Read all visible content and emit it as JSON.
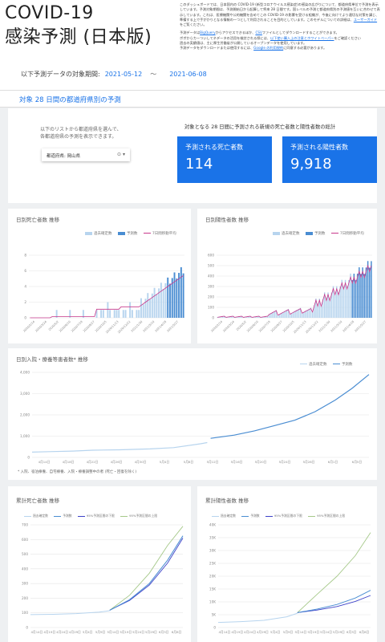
{
  "header": {
    "title": "COVID-19 感染予測 (日本版)",
    "period_label": "以下予測データの対象期間:",
    "start": "2021-05-12",
    "tilde": "〜",
    "end": "2021-06-08",
    "desc_p1": "このダッシュボードでは、日本国内の COVID-19 (新型コロナウイルス感染症)の感染の広がりについて、都道府県単位で予測を表示しています。予測対象期間は、予測開始日から起算して将来 28 日間です。国レベルの予測と都道府県別の予測値を互いに合わせて表示しています。これは、医療機関や公的機関を含めてこの COVID-19 の影響を受ける組織が、今後に向けてより適切な対策を講じ、準備する上で手がかりとなる情報の一つとして利用されることを目的としています。このモデルについての詳細は、",
    "desc_link1": "ユーザーガイド",
    "desc_p1_end": "をご覧ください。",
    "desc_p2": "予測データは",
    "desc_link2": "BigQuery",
    "desc_p2b": "からアクセスできるほか、",
    "desc_link3": "CSV",
    "desc_p2c": "ファイルとしてダウンロードすることができます。",
    "desc_p3": "ボボからカーついしてネデータの活用を検討される際には、",
    "desc_link4": "以下使い購入上の注意とホワイトペーパー",
    "desc_p3b": "をご確認ください",
    "desc_p4": "過去の実績値は、主に厚生労働省が公開しているオープンデータを使用しています。",
    "desc_p5": "予測データをダウンロードまたは使用するには、",
    "desc_link5": "Google の利用規約",
    "desc_p5b": "に同意する必要があります。"
  },
  "section_title": "対象 28 日間の都道府県別の予測",
  "selector": {
    "info_line1": "以下のリストから都道府県を選んで、",
    "info_line2": "各都道府県の予測を表示できます。",
    "dropdown_text": "都道府県: 岡山県"
  },
  "kpi": {
    "heading": "対象となる 28 日間に予測される新規の死亡者数と陽性者数の総計",
    "deaths_label": "予測される死亡者数",
    "deaths_value": "114",
    "positives_label": "予測される陽性者数",
    "positives_value": "9,918"
  },
  "colors": {
    "accent": "#1a73e8",
    "actual": "#b7d4ee",
    "forecast": "#4a8dd2",
    "avg": "#c7388b",
    "lower": "#3d42c9",
    "upper": "#a6c98a"
  },
  "charts": {
    "daily_deaths": {
      "title": "日別死亡者数 推移",
      "legend": [
        "過去確定数",
        "予測数",
        "7日間移動平均"
      ],
      "ylabels": [
        "8",
        "6",
        "4",
        "2",
        "0"
      ],
      "ymax": 8,
      "dates": [
        "2020/2/14",
        "2020/3/24",
        "2020/5/2",
        "2020/6/10",
        "2020/7/19",
        "2020/8/27",
        "2020/10/5",
        "2020/11/13",
        "2020/12/22",
        "2021/1/30",
        "2021/3/10",
        "2021/4/18",
        "2021/5/27"
      ]
    },
    "daily_positive": {
      "title": "日別陽性者数 推移",
      "legend": [
        "過去確定数",
        "予測数",
        "7日間移動平均"
      ],
      "ylabels": [
        "600",
        "500",
        "400",
        "300",
        "200",
        "100",
        "0"
      ],
      "ymax": 600,
      "dates": [
        "2020/2/14",
        "2020/3/24",
        "2020/5/2",
        "2020/6/10",
        "2020/7/19",
        "2020/8/27",
        "2020/10/5",
        "2020/11/13",
        "2020/12/22",
        "2021/1/30",
        "2021/3/10",
        "2021/4/18",
        "2021/5/27"
      ]
    },
    "hospital": {
      "title": "日別入院・療養等患者数* 推移",
      "legend": [
        "過去確定数",
        "予測数"
      ],
      "ylabels": [
        "4,000",
        "3,000",
        "2,000",
        "1,000",
        "0"
      ],
      "ymax": 4000,
      "dates": [
        "4月14日",
        "4月18日",
        "4月22日",
        "4月26日",
        "4月30日",
        "5月4日",
        "5月8日",
        "5月12日",
        "5月16日",
        "5月20日",
        "5月24日",
        "5月28日",
        "6月1日",
        "6月5日"
      ],
      "note": "* 入院、宿泊療養、自宅療養、入院・療養調整中の者 (死亡・回復を除く)"
    },
    "cum_deaths": {
      "title": "累計死亡者数 推移",
      "legend": [
        "過去確定数",
        "予測数",
        "95%予測区間の下限",
        "95%予測区間の上限"
      ],
      "ylabels": [
        "700",
        "600",
        "500",
        "400",
        "300",
        "200",
        "100",
        "0"
      ],
      "ymax": 700,
      "dates": [
        "4月14日",
        "4月19日",
        "4月24日",
        "4月29日",
        "5月4日",
        "5月9日",
        "5月14日",
        "5月19日",
        "5月24日",
        "5月29日",
        "6月3日",
        "6月8日"
      ]
    },
    "cum_positive": {
      "title": "累計陽性者数 推移",
      "legend": [
        "過去確定数",
        "予測数",
        "95%予測区間の下限",
        "95%予測区間の上限"
      ],
      "ylabels": [
        "40K",
        "35K",
        "30K",
        "25K",
        "20K",
        "15K",
        "10K",
        "5K",
        "0"
      ],
      "ymax": 40000,
      "dates": [
        "4月14日",
        "4月19日",
        "4月24日",
        "4月29日",
        "5月4日",
        "5月9日",
        "5月14日",
        "5月19日",
        "5月24日",
        "5月29日",
        "6月3日",
        "6月8日"
      ]
    }
  }
}
